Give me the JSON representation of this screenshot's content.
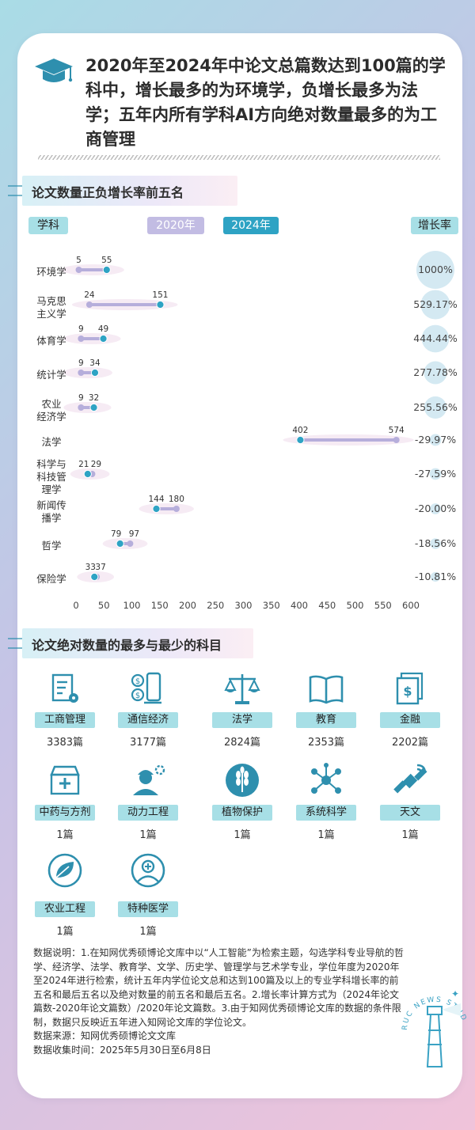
{
  "headline": "2020年至2024年中论文总篇数达到100篇的学科中，增长最多的为环境学，负增长最多为法学；五年内所有学科AI方向绝对数量最多的为工商管理",
  "section1": {
    "title": "论文数量正负增长率前五名",
    "col_subject": "学科",
    "legend_2020": "2020年",
    "legend_2024": "2024年",
    "col_growth": "增长率"
  },
  "chart_data": {
    "type": "dumbbell",
    "title": "论文数量正负增长率前五名",
    "series": [
      {
        "name": "2020年",
        "color": "#b6aedb"
      },
      {
        "name": "2024年",
        "color": "#2ea3c4"
      }
    ],
    "xlim": [
      0,
      600
    ],
    "xticks": [
      0,
      50,
      100,
      150,
      200,
      250,
      300,
      350,
      400,
      450,
      500,
      550,
      600
    ],
    "categories": [
      "环境学",
      "马克思主义学",
      "体育学",
      "统计学",
      "农业经济学",
      "法学",
      "科学与科技管理学",
      "新闻传播学",
      "哲学",
      "保险学"
    ],
    "category_lines": [
      [
        "环境学"
      ],
      [
        "马克思",
        "主义学"
      ],
      [
        "体育学"
      ],
      [
        "统计学"
      ],
      [
        "农业",
        "经济学"
      ],
      [
        "法学"
      ],
      [
        "科学与",
        "科技管",
        "理学"
      ],
      [
        "新闻传",
        "播学"
      ],
      [
        "哲学"
      ],
      [
        "保险学"
      ]
    ],
    "values_2020": [
      5,
      24,
      9,
      9,
      9,
      574,
      29,
      180,
      97,
      37
    ],
    "values_2024": [
      55,
      151,
      49,
      34,
      32,
      402,
      21,
      144,
      79,
      33
    ],
    "growth_labels": [
      "1000%",
      "529.17%",
      "444.44%",
      "277.78%",
      "255.56%",
      "-29.97%",
      "-27.59%",
      "-20.00%",
      "-18.56%",
      "-10.81%"
    ],
    "growth_values": [
      1000,
      529.17,
      444.44,
      277.78,
      255.56,
      -29.97,
      -27.59,
      -20.0,
      -18.56,
      -10.81
    ],
    "grid": false,
    "legend": "top"
  },
  "section2": {
    "title": "论文绝对数量的最多与最少的科目",
    "subjects": [
      {
        "name": "工商管理",
        "count": "3383篇",
        "icon": "document-gear-icon"
      },
      {
        "name": "通信经济",
        "count": "3177篇",
        "icon": "phone-money-icon"
      },
      {
        "name": "法学",
        "count": "2824篇",
        "icon": "scales-icon"
      },
      {
        "name": "教育",
        "count": "2353篇",
        "icon": "open-book-icon"
      },
      {
        "name": "金融",
        "count": "2202篇",
        "icon": "money-docs-icon"
      },
      {
        "name": "中药与方剂",
        "count": "1篇",
        "icon": "medicine-box-icon"
      },
      {
        "name": "动力工程",
        "count": "1篇",
        "icon": "engineer-icon"
      },
      {
        "name": "植物保护",
        "count": "1篇",
        "icon": "wheat-icon"
      },
      {
        "name": "系统科学",
        "count": "1篇",
        "icon": "network-icon"
      },
      {
        "name": "天文",
        "count": "1篇",
        "icon": "satellite-icon"
      },
      {
        "name": "农业工程",
        "count": "1篇",
        "icon": "leaf-icon"
      },
      {
        "name": "特种医学",
        "count": "1篇",
        "icon": "doctor-icon"
      }
    ]
  },
  "notes": [
    "数据说明：1.在知网优秀硕博论文库中以“人工智能”为检索主题，勾选学科专业导航的哲学、经济学、法学、教育学、文学、历史学、管理学与艺术学专业，学位年度为2020年至2024年进行检索，统计五年内学位论文总和达到100篇及以上的专业学科增长率的前五名和最后五名以及绝对数量的前五名和最后五名。2.增长率计算方式为（2024年论文篇数-2020年论文篇数）/2020年论文篇数。3.由于知网优秀硕博论文库的数据的条件限制，数据只反映近五年进入知网论文库的学位论文。",
    "数据来源：知网优秀硕博论文文库",
    "数据收集时间：2025年5月30日至6月8日"
  ],
  "stamp_text": "RUC NEWS STUDIO",
  "colors": {
    "teal": "#2ea3c4",
    "lavender": "#b6aedb",
    "pill_teal": "#a7dfe6",
    "icon_teal": "#2e8fae"
  }
}
